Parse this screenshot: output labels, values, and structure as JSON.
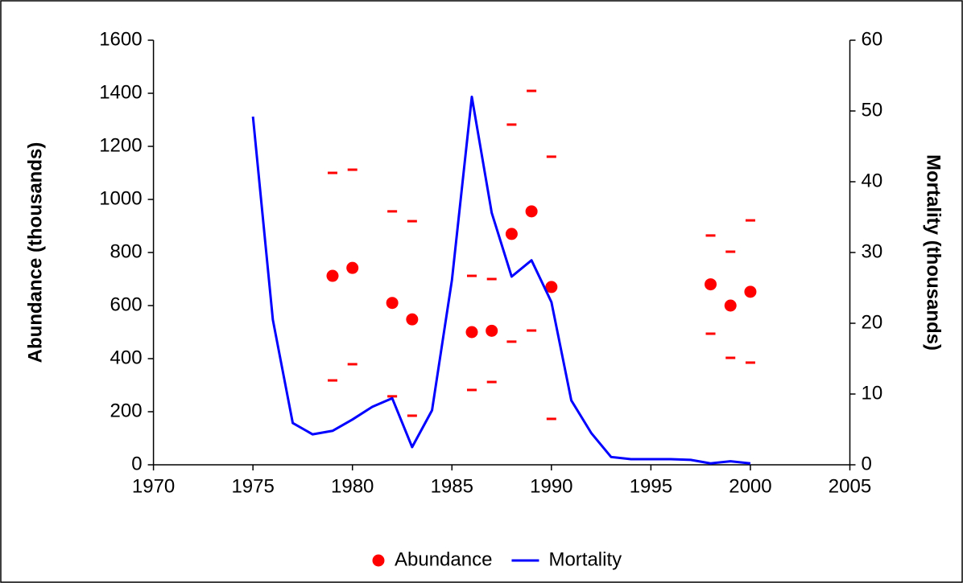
{
  "chart_data": {
    "type": "scatter-line",
    "ylabel": "Abundance (thousands)",
    "y2label": "Mortality (thousands)",
    "xlim": [
      1970,
      2005
    ],
    "xticks": [
      1970,
      1975,
      1980,
      1985,
      1990,
      1995,
      2000,
      2005
    ],
    "ylim": [
      0,
      1600
    ],
    "yticks": [
      0,
      200,
      400,
      600,
      800,
      1000,
      1200,
      1400,
      1600
    ],
    "y2lim": [
      0,
      60
    ],
    "y2ticks": [
      0,
      10,
      20,
      30,
      40,
      50,
      60
    ],
    "legend": "bottom",
    "series": [
      {
        "name": "Abundance",
        "type": "scatter",
        "color": "#ff0000",
        "x": [
          1979,
          1980,
          1982,
          1983,
          1986,
          1987,
          1988,
          1989,
          1990,
          1998,
          1999,
          2000
        ],
        "values": [
          712,
          742,
          610,
          548,
          500,
          505,
          870,
          955,
          670,
          680,
          600,
          652
        ],
        "lower": [
          318,
          379,
          258,
          185,
          282,
          312,
          464,
          506,
          173,
          494,
          403,
          385
        ],
        "upper": [
          1100,
          1112,
          955,
          918,
          712,
          700,
          1282,
          1409,
          1161,
          864,
          803,
          921
        ]
      },
      {
        "name": "Mortality",
        "type": "line",
        "color": "#0000ff",
        "axis": "y2",
        "x": [
          1975,
          1976,
          1977,
          1978,
          1979,
          1980,
          1981,
          1982,
          1983,
          1984,
          1985,
          1986,
          1987,
          1988,
          1989,
          1990,
          1991,
          1992,
          1993,
          1994,
          1995,
          1996,
          1997,
          1998,
          1999,
          2000
        ],
        "values": [
          49.2,
          20.5,
          5.9,
          4.3,
          4.8,
          6.4,
          8.2,
          9.4,
          2.5,
          7.7,
          26.1,
          52,
          35.6,
          26.6,
          28.9,
          23,
          9.1,
          4.5,
          1.1,
          0.8,
          0.8,
          0.8,
          0.7,
          0.2,
          0.5,
          0.2
        ]
      }
    ]
  }
}
